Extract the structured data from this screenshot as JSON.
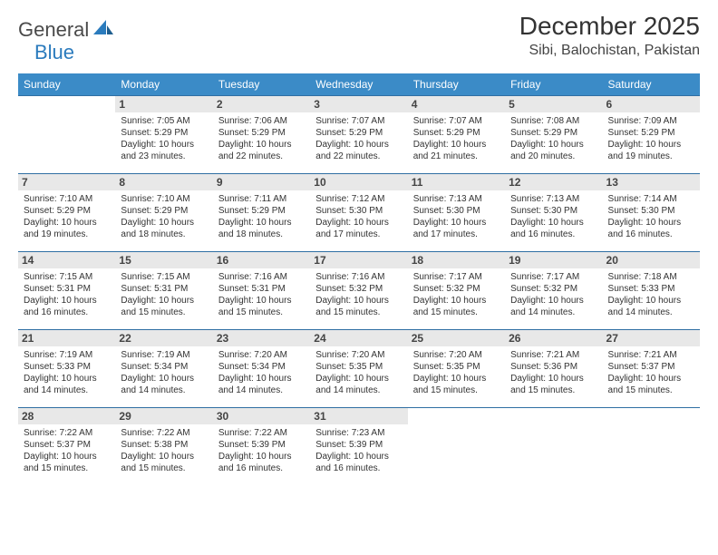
{
  "logo": {
    "text1": "General",
    "text2": "Blue"
  },
  "title": "December 2025",
  "location": "Sibi, Balochistan, Pakistan",
  "colors": {
    "header_bg": "#3b8bc7",
    "header_text": "#ffffff",
    "row_divider": "#2f6fa3",
    "daynum_bg": "#e8e8e8",
    "daynum_text": "#444444",
    "body_text": "#333333",
    "logo_gray": "#4a4a4a",
    "logo_blue": "#2b7bbd",
    "page_bg": "#ffffff"
  },
  "day_headers": [
    "Sunday",
    "Monday",
    "Tuesday",
    "Wednesday",
    "Thursday",
    "Friday",
    "Saturday"
  ],
  "first_weekday": 1,
  "days": [
    {
      "n": 1,
      "sunrise": "7:05 AM",
      "sunset": "5:29 PM",
      "daylight": "10 hours and 23 minutes."
    },
    {
      "n": 2,
      "sunrise": "7:06 AM",
      "sunset": "5:29 PM",
      "daylight": "10 hours and 22 minutes."
    },
    {
      "n": 3,
      "sunrise": "7:07 AM",
      "sunset": "5:29 PM",
      "daylight": "10 hours and 22 minutes."
    },
    {
      "n": 4,
      "sunrise": "7:07 AM",
      "sunset": "5:29 PM",
      "daylight": "10 hours and 21 minutes."
    },
    {
      "n": 5,
      "sunrise": "7:08 AM",
      "sunset": "5:29 PM",
      "daylight": "10 hours and 20 minutes."
    },
    {
      "n": 6,
      "sunrise": "7:09 AM",
      "sunset": "5:29 PM",
      "daylight": "10 hours and 19 minutes."
    },
    {
      "n": 7,
      "sunrise": "7:10 AM",
      "sunset": "5:29 PM",
      "daylight": "10 hours and 19 minutes."
    },
    {
      "n": 8,
      "sunrise": "7:10 AM",
      "sunset": "5:29 PM",
      "daylight": "10 hours and 18 minutes."
    },
    {
      "n": 9,
      "sunrise": "7:11 AM",
      "sunset": "5:29 PM",
      "daylight": "10 hours and 18 minutes."
    },
    {
      "n": 10,
      "sunrise": "7:12 AM",
      "sunset": "5:30 PM",
      "daylight": "10 hours and 17 minutes."
    },
    {
      "n": 11,
      "sunrise": "7:13 AM",
      "sunset": "5:30 PM",
      "daylight": "10 hours and 17 minutes."
    },
    {
      "n": 12,
      "sunrise": "7:13 AM",
      "sunset": "5:30 PM",
      "daylight": "10 hours and 16 minutes."
    },
    {
      "n": 13,
      "sunrise": "7:14 AM",
      "sunset": "5:30 PM",
      "daylight": "10 hours and 16 minutes."
    },
    {
      "n": 14,
      "sunrise": "7:15 AM",
      "sunset": "5:31 PM",
      "daylight": "10 hours and 16 minutes."
    },
    {
      "n": 15,
      "sunrise": "7:15 AM",
      "sunset": "5:31 PM",
      "daylight": "10 hours and 15 minutes."
    },
    {
      "n": 16,
      "sunrise": "7:16 AM",
      "sunset": "5:31 PM",
      "daylight": "10 hours and 15 minutes."
    },
    {
      "n": 17,
      "sunrise": "7:16 AM",
      "sunset": "5:32 PM",
      "daylight": "10 hours and 15 minutes."
    },
    {
      "n": 18,
      "sunrise": "7:17 AM",
      "sunset": "5:32 PM",
      "daylight": "10 hours and 15 minutes."
    },
    {
      "n": 19,
      "sunrise": "7:17 AM",
      "sunset": "5:32 PM",
      "daylight": "10 hours and 14 minutes."
    },
    {
      "n": 20,
      "sunrise": "7:18 AM",
      "sunset": "5:33 PM",
      "daylight": "10 hours and 14 minutes."
    },
    {
      "n": 21,
      "sunrise": "7:19 AM",
      "sunset": "5:33 PM",
      "daylight": "10 hours and 14 minutes."
    },
    {
      "n": 22,
      "sunrise": "7:19 AM",
      "sunset": "5:34 PM",
      "daylight": "10 hours and 14 minutes."
    },
    {
      "n": 23,
      "sunrise": "7:20 AM",
      "sunset": "5:34 PM",
      "daylight": "10 hours and 14 minutes."
    },
    {
      "n": 24,
      "sunrise": "7:20 AM",
      "sunset": "5:35 PM",
      "daylight": "10 hours and 14 minutes."
    },
    {
      "n": 25,
      "sunrise": "7:20 AM",
      "sunset": "5:35 PM",
      "daylight": "10 hours and 15 minutes."
    },
    {
      "n": 26,
      "sunrise": "7:21 AM",
      "sunset": "5:36 PM",
      "daylight": "10 hours and 15 minutes."
    },
    {
      "n": 27,
      "sunrise": "7:21 AM",
      "sunset": "5:37 PM",
      "daylight": "10 hours and 15 minutes."
    },
    {
      "n": 28,
      "sunrise": "7:22 AM",
      "sunset": "5:37 PM",
      "daylight": "10 hours and 15 minutes."
    },
    {
      "n": 29,
      "sunrise": "7:22 AM",
      "sunset": "5:38 PM",
      "daylight": "10 hours and 15 minutes."
    },
    {
      "n": 30,
      "sunrise": "7:22 AM",
      "sunset": "5:39 PM",
      "daylight": "10 hours and 16 minutes."
    },
    {
      "n": 31,
      "sunrise": "7:23 AM",
      "sunset": "5:39 PM",
      "daylight": "10 hours and 16 minutes."
    }
  ],
  "labels": {
    "sunrise": "Sunrise:",
    "sunset": "Sunset:",
    "daylight": "Daylight:"
  }
}
